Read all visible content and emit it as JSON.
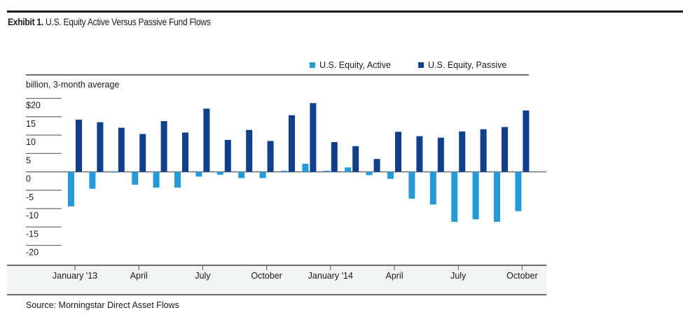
{
  "exhibit": {
    "label": "Exhibit 1.",
    "title": "U.S. Equity Active Versus Passive Fund Flows"
  },
  "source": "Source: Morningstar Direct Asset Flows",
  "colors": {
    "active": "#239bdb",
    "passive": "#0f3f8f",
    "gridline": "#6e6e6e",
    "axis_band": "#f2f3f3"
  },
  "chart_data": {
    "type": "bar",
    "title": "U.S. Equity Active Versus Passive Fund Flows",
    "ylabel": "billion, 3-month average",
    "xlabel": "",
    "ylim": [
      -20,
      20
    ],
    "yticks": [
      20,
      15,
      10,
      5,
      0,
      -5,
      -10,
      -15,
      -20
    ],
    "ytick_labels": [
      "$20",
      "15",
      "10",
      "5",
      "0",
      "-5",
      "-10",
      "-15",
      "-20"
    ],
    "grid": true,
    "legend_position": "top-right",
    "categories": [
      "Jan 2013",
      "Feb 2013",
      "Mar 2013",
      "Apr 2013",
      "May 2013",
      "Jun 2013",
      "Jul 2013",
      "Aug 2013",
      "Sep 2013",
      "Oct 2013",
      "Nov 2013",
      "Dec 2013",
      "Jan 2014",
      "Feb 2014",
      "Mar 2014",
      "Apr 2014",
      "May 2014",
      "Jun 2014",
      "Jul 2014",
      "Aug 2014",
      "Sep 2014",
      "Oct 2014"
    ],
    "xtick_labels": [
      {
        "label": "January '13",
        "index": 0
      },
      {
        "label": "April",
        "index": 3
      },
      {
        "label": "July",
        "index": 6
      },
      {
        "label": "October",
        "index": 9
      },
      {
        "label": "January '14",
        "index": 12
      },
      {
        "label": "April",
        "index": 15
      },
      {
        "label": "July",
        "index": 18
      },
      {
        "label": "October",
        "index": 21
      }
    ],
    "series": [
      {
        "name": "U.S. Equity, Active",
        "color": "#239bdb",
        "values": [
          -9.4,
          -4.6,
          -0.2,
          -3.5,
          -4.3,
          -4.3,
          -1.3,
          -0.8,
          -1.7,
          -1.7,
          0.3,
          2.2,
          0.3,
          1.2,
          -0.9,
          -1.9,
          -7.3,
          -8.9,
          -13.6,
          -12.9,
          -13.6,
          -10.7
        ]
      },
      {
        "name": "U.S. Equity, Passive",
        "color": "#0f3f8f",
        "values": [
          14.2,
          13.5,
          12.0,
          10.3,
          13.8,
          10.7,
          17.2,
          8.7,
          11.4,
          8.4,
          15.4,
          18.7,
          8.1,
          7.0,
          3.5,
          10.9,
          9.7,
          9.3,
          11.0,
          11.6,
          12.2,
          16.7
        ]
      }
    ]
  }
}
